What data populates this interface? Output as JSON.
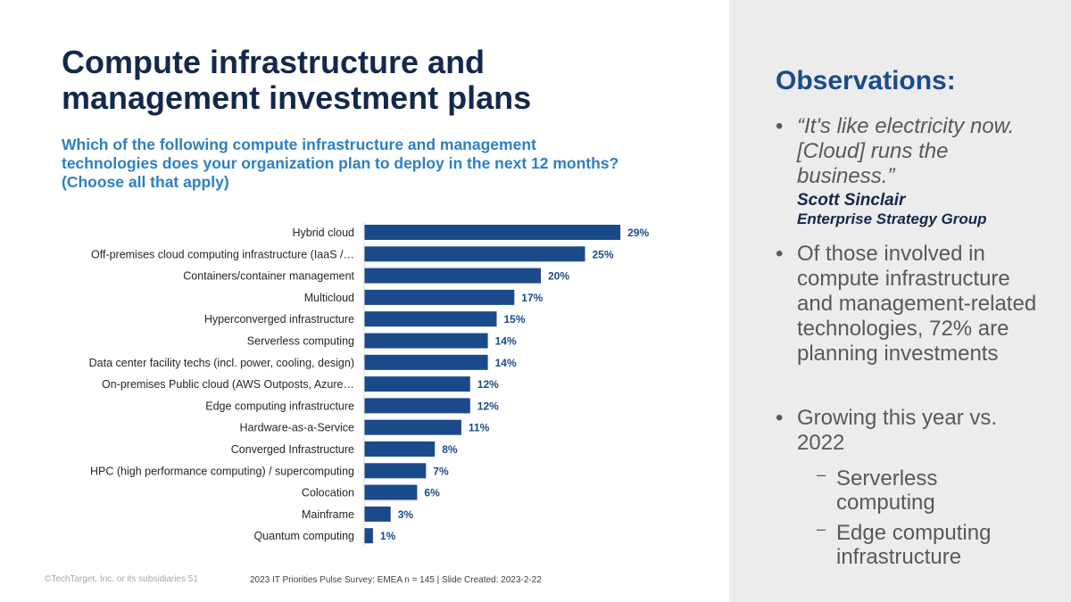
{
  "slide": {
    "title": "Compute infrastructure and management investment plans",
    "question": "Which of the following compute infrastructure and management technologies does your organization plan to deploy in the next 12 months? (Choose all that apply)",
    "footer_left": "©TechTarget, Inc. or its subsidiaries   51",
    "footer_source": "2023 IT Priorities Pulse Survey: EMEA  n = 145 | Slide Created: 2023-2-22"
  },
  "observations": {
    "heading": "Observations:",
    "quote": "“It's like electricity now. [Cloud] runs the business.”",
    "quote_author": "Scott Sinclair",
    "quote_org": "Enterprise Strategy Group",
    "bullet2": "Of those involved in compute infrastructure and management-related technologies, 72% are planning investments",
    "bullet3": "Growing this year vs. 2022",
    "sub1": "Serverless computing",
    "sub2": "Edge computing infrastructure"
  },
  "colors": {
    "bar": "#1b4a8b",
    "label": "#1b4a8b",
    "title": "#14284b",
    "question": "#2d7fc4",
    "panel": "#ececec"
  },
  "chart_data": {
    "type": "bar",
    "orientation": "horizontal",
    "categories": [
      "Hybrid cloud",
      "Off-premises cloud computing infrastructure (IaaS /…",
      "Containers/container management",
      "Multicloud",
      "Hyperconverged infrastructure",
      "Serverless computing",
      "Data center facility techs (incl. power, cooling, design)",
      "On-premises Public cloud (AWS Outposts, Azure…",
      "Edge computing infrastructure",
      "Hardware-as-a-Service",
      "Converged Infrastructure",
      "HPC (high performance computing) / supercomputing",
      "Colocation",
      "Mainframe",
      "Quantum computing"
    ],
    "values": [
      29,
      25,
      20,
      17,
      15,
      14,
      14,
      12,
      12,
      11,
      8,
      7,
      6,
      3,
      1
    ],
    "value_labels": [
      "29%",
      "25%",
      "20%",
      "17%",
      "15%",
      "14%",
      "14%",
      "12%",
      "12%",
      "11%",
      "8%",
      "7%",
      "6%",
      "3%",
      "1%"
    ],
    "xlim": [
      0,
      30
    ],
    "grid": false,
    "legend": "none"
  }
}
